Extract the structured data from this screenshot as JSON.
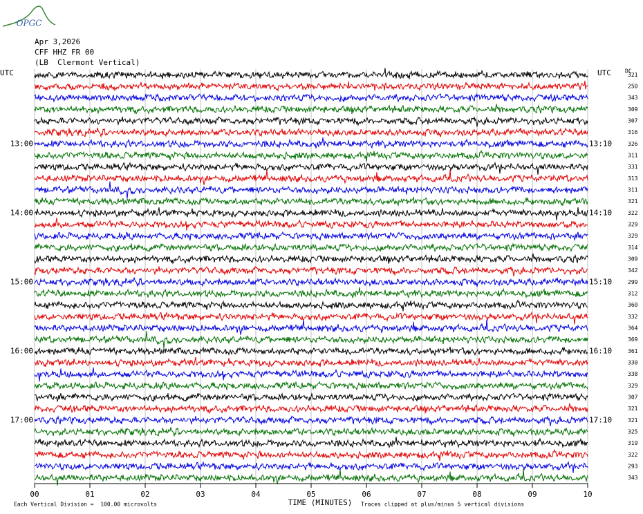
{
  "header": {
    "logo": "OPGC",
    "date": "Apr 3,2026",
    "station": "CFF HHZ FR 00",
    "location": "(LB  Clermont Vertical)"
  },
  "chart_data": {
    "type": "helicorder",
    "x_label": "TIME (MINUTES)",
    "left_title": "UTC",
    "right_title": "UTC",
    "dc_title": "DC",
    "xlim": [
      0,
      10
    ],
    "xticks": [
      {
        "value": 0,
        "label": "00"
      },
      {
        "value": 1,
        "label": "01"
      },
      {
        "value": 2,
        "label": "02"
      },
      {
        "value": 3,
        "label": "03"
      },
      {
        "value": 4,
        "label": "04"
      },
      {
        "value": 5,
        "label": "05"
      },
      {
        "value": 6,
        "label": "06"
      },
      {
        "value": 7,
        "label": "07"
      },
      {
        "value": 8,
        "label": "08"
      },
      {
        "value": 9,
        "label": "09"
      },
      10
    ],
    "colors": [
      "#000000",
      "#e00000",
      "#0000e0",
      "#007000"
    ],
    "rows": [
      {
        "left": null,
        "right": null,
        "dc": 321
      },
      {
        "left": null,
        "right": null,
        "dc": 250
      },
      {
        "left": null,
        "right": null,
        "dc": 343
      },
      {
        "left": null,
        "right": null,
        "dc": 309
      },
      {
        "left": null,
        "right": null,
        "dc": 307
      },
      {
        "left": null,
        "right": null,
        "dc": 316
      },
      {
        "left": "13:00",
        "right": "13:10",
        "dc": 326
      },
      {
        "left": null,
        "right": null,
        "dc": 311
      },
      {
        "left": null,
        "right": null,
        "dc": 331
      },
      {
        "left": null,
        "right": null,
        "dc": 313
      },
      {
        "left": null,
        "right": null,
        "dc": 311
      },
      {
        "left": null,
        "right": null,
        "dc": 321
      },
      {
        "left": "14:00",
        "right": "14:10",
        "dc": 322
      },
      {
        "left": null,
        "right": null,
        "dc": 329
      },
      {
        "left": null,
        "right": null,
        "dc": 329
      },
      {
        "left": null,
        "right": null,
        "dc": 314
      },
      {
        "left": null,
        "right": null,
        "dc": 309
      },
      {
        "left": null,
        "right": null,
        "dc": 342
      },
      {
        "left": "15:00",
        "right": "15:10",
        "dc": 299
      },
      {
        "left": null,
        "right": null,
        "dc": 312
      },
      {
        "left": null,
        "right": null,
        "dc": 360
      },
      {
        "left": null,
        "right": null,
        "dc": 332
      },
      {
        "left": null,
        "right": null,
        "dc": 364
      },
      {
        "left": null,
        "right": null,
        "dc": 369
      },
      {
        "left": "16:00",
        "right": "16:10",
        "dc": 361
      },
      {
        "left": null,
        "right": null,
        "dc": 330
      },
      {
        "left": null,
        "right": null,
        "dc": 338
      },
      {
        "left": null,
        "right": null,
        "dc": 329
      },
      {
        "left": null,
        "right": null,
        "dc": 307
      },
      {
        "left": null,
        "right": null,
        "dc": 321
      },
      {
        "left": "17:00",
        "right": "17:10",
        "dc": 321
      },
      {
        "left": null,
        "right": null,
        "dc": 325
      },
      {
        "left": null,
        "right": null,
        "dc": 319
      },
      {
        "left": null,
        "right": null,
        "dc": 322
      },
      {
        "left": null,
        "right": null,
        "dc": 293
      },
      {
        "left": null,
        "right": null,
        "dc": 343
      }
    ],
    "note_left": "Each Vertical Division =  100.00 microvolts",
    "note_right": "Traces clipped at plus/minus 5 vertical divisions"
  }
}
